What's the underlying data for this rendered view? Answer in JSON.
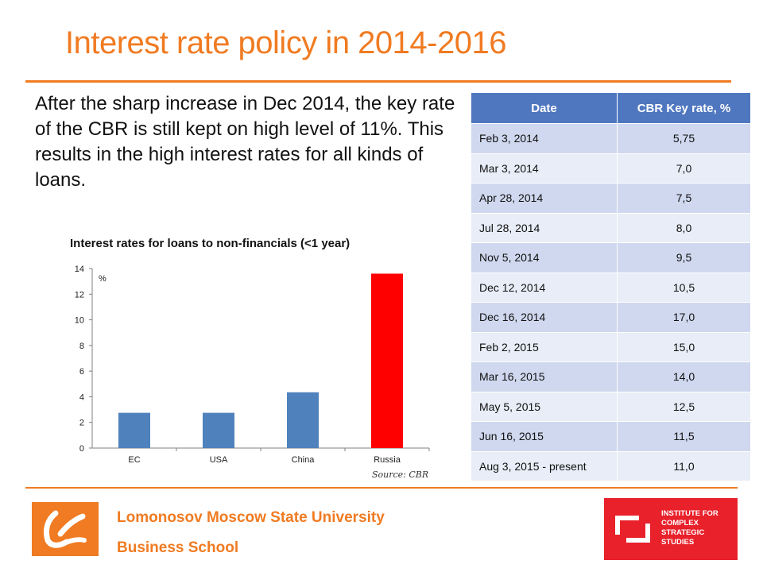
{
  "slide": {
    "title": "Interest rate policy in 2014-2016",
    "intro": "After the sharp increase in Dec 2014, the key rate of the CBR is still kept on high level of 11%. This results in the high interest rates for all kinds of loans."
  },
  "table": {
    "headers": [
      "Date",
      "CBR Key rate, %"
    ],
    "rows": [
      [
        "Feb 3, 2014",
        "5,75"
      ],
      [
        "Mar 3, 2014",
        "7,0"
      ],
      [
        "Apr 28, 2014",
        "7,5"
      ],
      [
        "Jul 28, 2014",
        "8,0"
      ],
      [
        "Nov 5, 2014",
        "9,5"
      ],
      [
        "Dec 12, 2014",
        "10,5"
      ],
      [
        "Dec 16, 2014",
        "17,0"
      ],
      [
        "Feb 2, 2015",
        "15,0"
      ],
      [
        "Mar 16, 2015",
        "14,0"
      ],
      [
        "May 5, 2015",
        "12,5"
      ],
      [
        "Jun 16, 2015",
        "11,5"
      ],
      [
        "Aug 3, 2015 - present",
        "11,0"
      ]
    ]
  },
  "chart_data": {
    "type": "bar",
    "title": "Interest rates for loans to non-financials (<1 year)",
    "unit_label": "%",
    "categories": [
      "EC",
      "USA",
      "China",
      "Russia"
    ],
    "values": [
      2.75,
      2.75,
      4.35,
      13.6
    ],
    "colors": [
      "#4f81bd",
      "#4f81bd",
      "#4f81bd",
      "#ff0000"
    ],
    "ylim": [
      0,
      14
    ],
    "yticks": [
      0,
      2,
      4,
      6,
      8,
      10,
      12,
      14
    ],
    "grid": false,
    "source": "Source: CBR"
  },
  "footer": {
    "university": "Lomonosov Moscow State University",
    "school": "Business School",
    "institute_logo_text": "INSTITUTE FOR\nCOMPLEX\nSTRATEGIC\nSTUDIES"
  },
  "colors": {
    "accent": "#f07b22",
    "table_header": "#4f77c0",
    "institute_red": "#e8212b"
  }
}
